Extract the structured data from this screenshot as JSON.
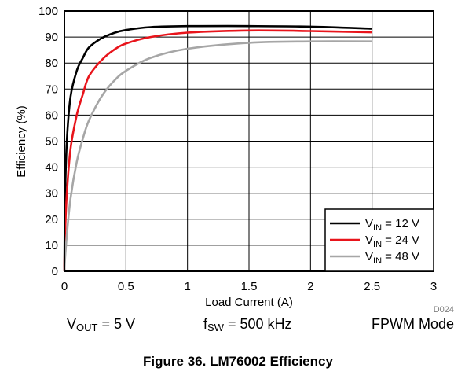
{
  "chart_data": {
    "type": "line",
    "title": "",
    "xlabel": "Load Current (A)",
    "ylabel": "Efficiency (%)",
    "xlim": [
      0,
      3
    ],
    "ylim": [
      0,
      100
    ],
    "x_ticks": [
      "0",
      "0.5",
      "1",
      "1.5",
      "2",
      "2.5",
      "3"
    ],
    "y_ticks": [
      "0",
      "10",
      "20",
      "30",
      "40",
      "50",
      "60",
      "70",
      "80",
      "90",
      "100"
    ],
    "grid": true,
    "legend_position": "bottom-right",
    "series": [
      {
        "name": "V_IN = 12 V",
        "name_main": "V",
        "name_sub": "IN",
        "name_rest": " = 12 V",
        "color": "#000000",
        "x": [
          0.005,
          0.02,
          0.05,
          0.1,
          0.15,
          0.2,
          0.3,
          0.4,
          0.5,
          0.7,
          1.0,
          1.5,
          2.0,
          2.5
        ],
        "y": [
          28,
          50,
          67,
          77,
          82,
          86,
          89.5,
          91.5,
          92.7,
          93.8,
          94.2,
          94.2,
          94,
          93.2
        ]
      },
      {
        "name": "V_IN = 24 V",
        "name_main": "V",
        "name_sub": "IN",
        "name_rest": " = 24 V",
        "color": "#e8141b",
        "x": [
          0.005,
          0.02,
          0.05,
          0.1,
          0.15,
          0.2,
          0.3,
          0.4,
          0.5,
          0.7,
          1.0,
          1.5,
          2.0,
          2.5
        ],
        "y": [
          14,
          30,
          47,
          60,
          68,
          75,
          81,
          85,
          87.5,
          90,
          91.7,
          92.5,
          92.3,
          91.8
        ]
      },
      {
        "name": "V_IN = 48 V",
        "name_main": "V",
        "name_sub": "IN",
        "name_rest": " = 48 V",
        "color": "#a6a6a6",
        "x": [
          0.005,
          0.02,
          0.05,
          0.1,
          0.15,
          0.2,
          0.3,
          0.4,
          0.5,
          0.7,
          1.0,
          1.5,
          2.0,
          2.5
        ],
        "y": [
          5,
          14,
          28,
          42,
          51,
          58,
          67,
          73,
          77,
          82,
          85.5,
          87.8,
          88.3,
          88.3
        ]
      }
    ],
    "figure_code": "D024"
  },
  "conditions": {
    "vout": {
      "main": "V",
      "sub": "OUT",
      "rest": " = 5 V"
    },
    "fsw": {
      "main": "f",
      "sub": "SW",
      "rest": " = 500 kHz"
    },
    "mode": "FPWM Mode"
  },
  "caption": "Figure 36. LM76002 Efficiency"
}
